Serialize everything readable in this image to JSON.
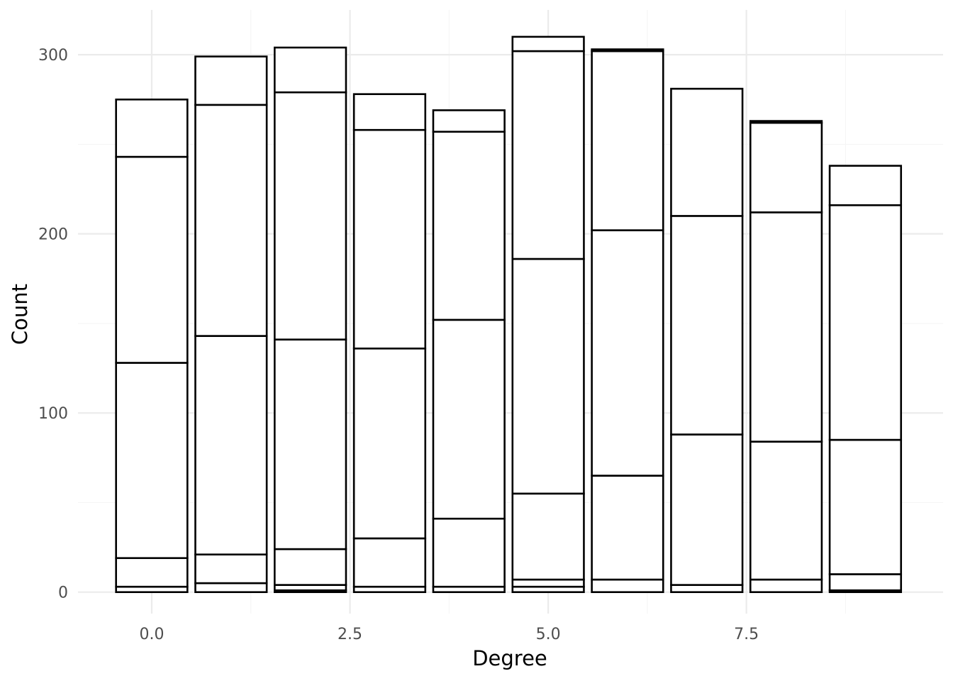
{
  "chart_data": {
    "type": "bar",
    "stacked": true,
    "title": "",
    "xlabel": "Degree",
    "ylabel": "Count",
    "categories": [
      0,
      1,
      2,
      3,
      4,
      5,
      6,
      7,
      8,
      9
    ],
    "xlim": [
      -0.93,
      9.98
    ],
    "ylim": [
      -12,
      325
    ],
    "x_ticks": [
      0,
      2.5,
      5,
      7.5
    ],
    "x_tick_labels": [
      "0.0",
      "2.5",
      "5.0",
      "7.5"
    ],
    "y_ticks": [
      0,
      100,
      200,
      300
    ],
    "y_tick_labels": [
      "0",
      "100",
      "200",
      "300"
    ],
    "grid": true,
    "colors": {
      "bar_fill": "#ffffff",
      "bar_outline": "#000000",
      "grid_major": "#ebebeb",
      "grid_minor": "#f5f5f5",
      "tick_label": "#4d4d4d",
      "axis_title": "#000000"
    },
    "segment_boundaries": [
      [
        0,
        3,
        19,
        128,
        243,
        275
      ],
      [
        0,
        5,
        21,
        143,
        272,
        299
      ],
      [
        0,
        1,
        4,
        24,
        141,
        279,
        304
      ],
      [
        0,
        3,
        30,
        136,
        258,
        278
      ],
      [
        0,
        3,
        41,
        152,
        257,
        269
      ],
      [
        0,
        3,
        7,
        55,
        186,
        302,
        310
      ],
      [
        0,
        7,
        65,
        202,
        302,
        303
      ],
      [
        0,
        4,
        88,
        210,
        281
      ],
      [
        0,
        7,
        84,
        212,
        262,
        263
      ],
      [
        0,
        1,
        10,
        85,
        216,
        238
      ]
    ]
  }
}
